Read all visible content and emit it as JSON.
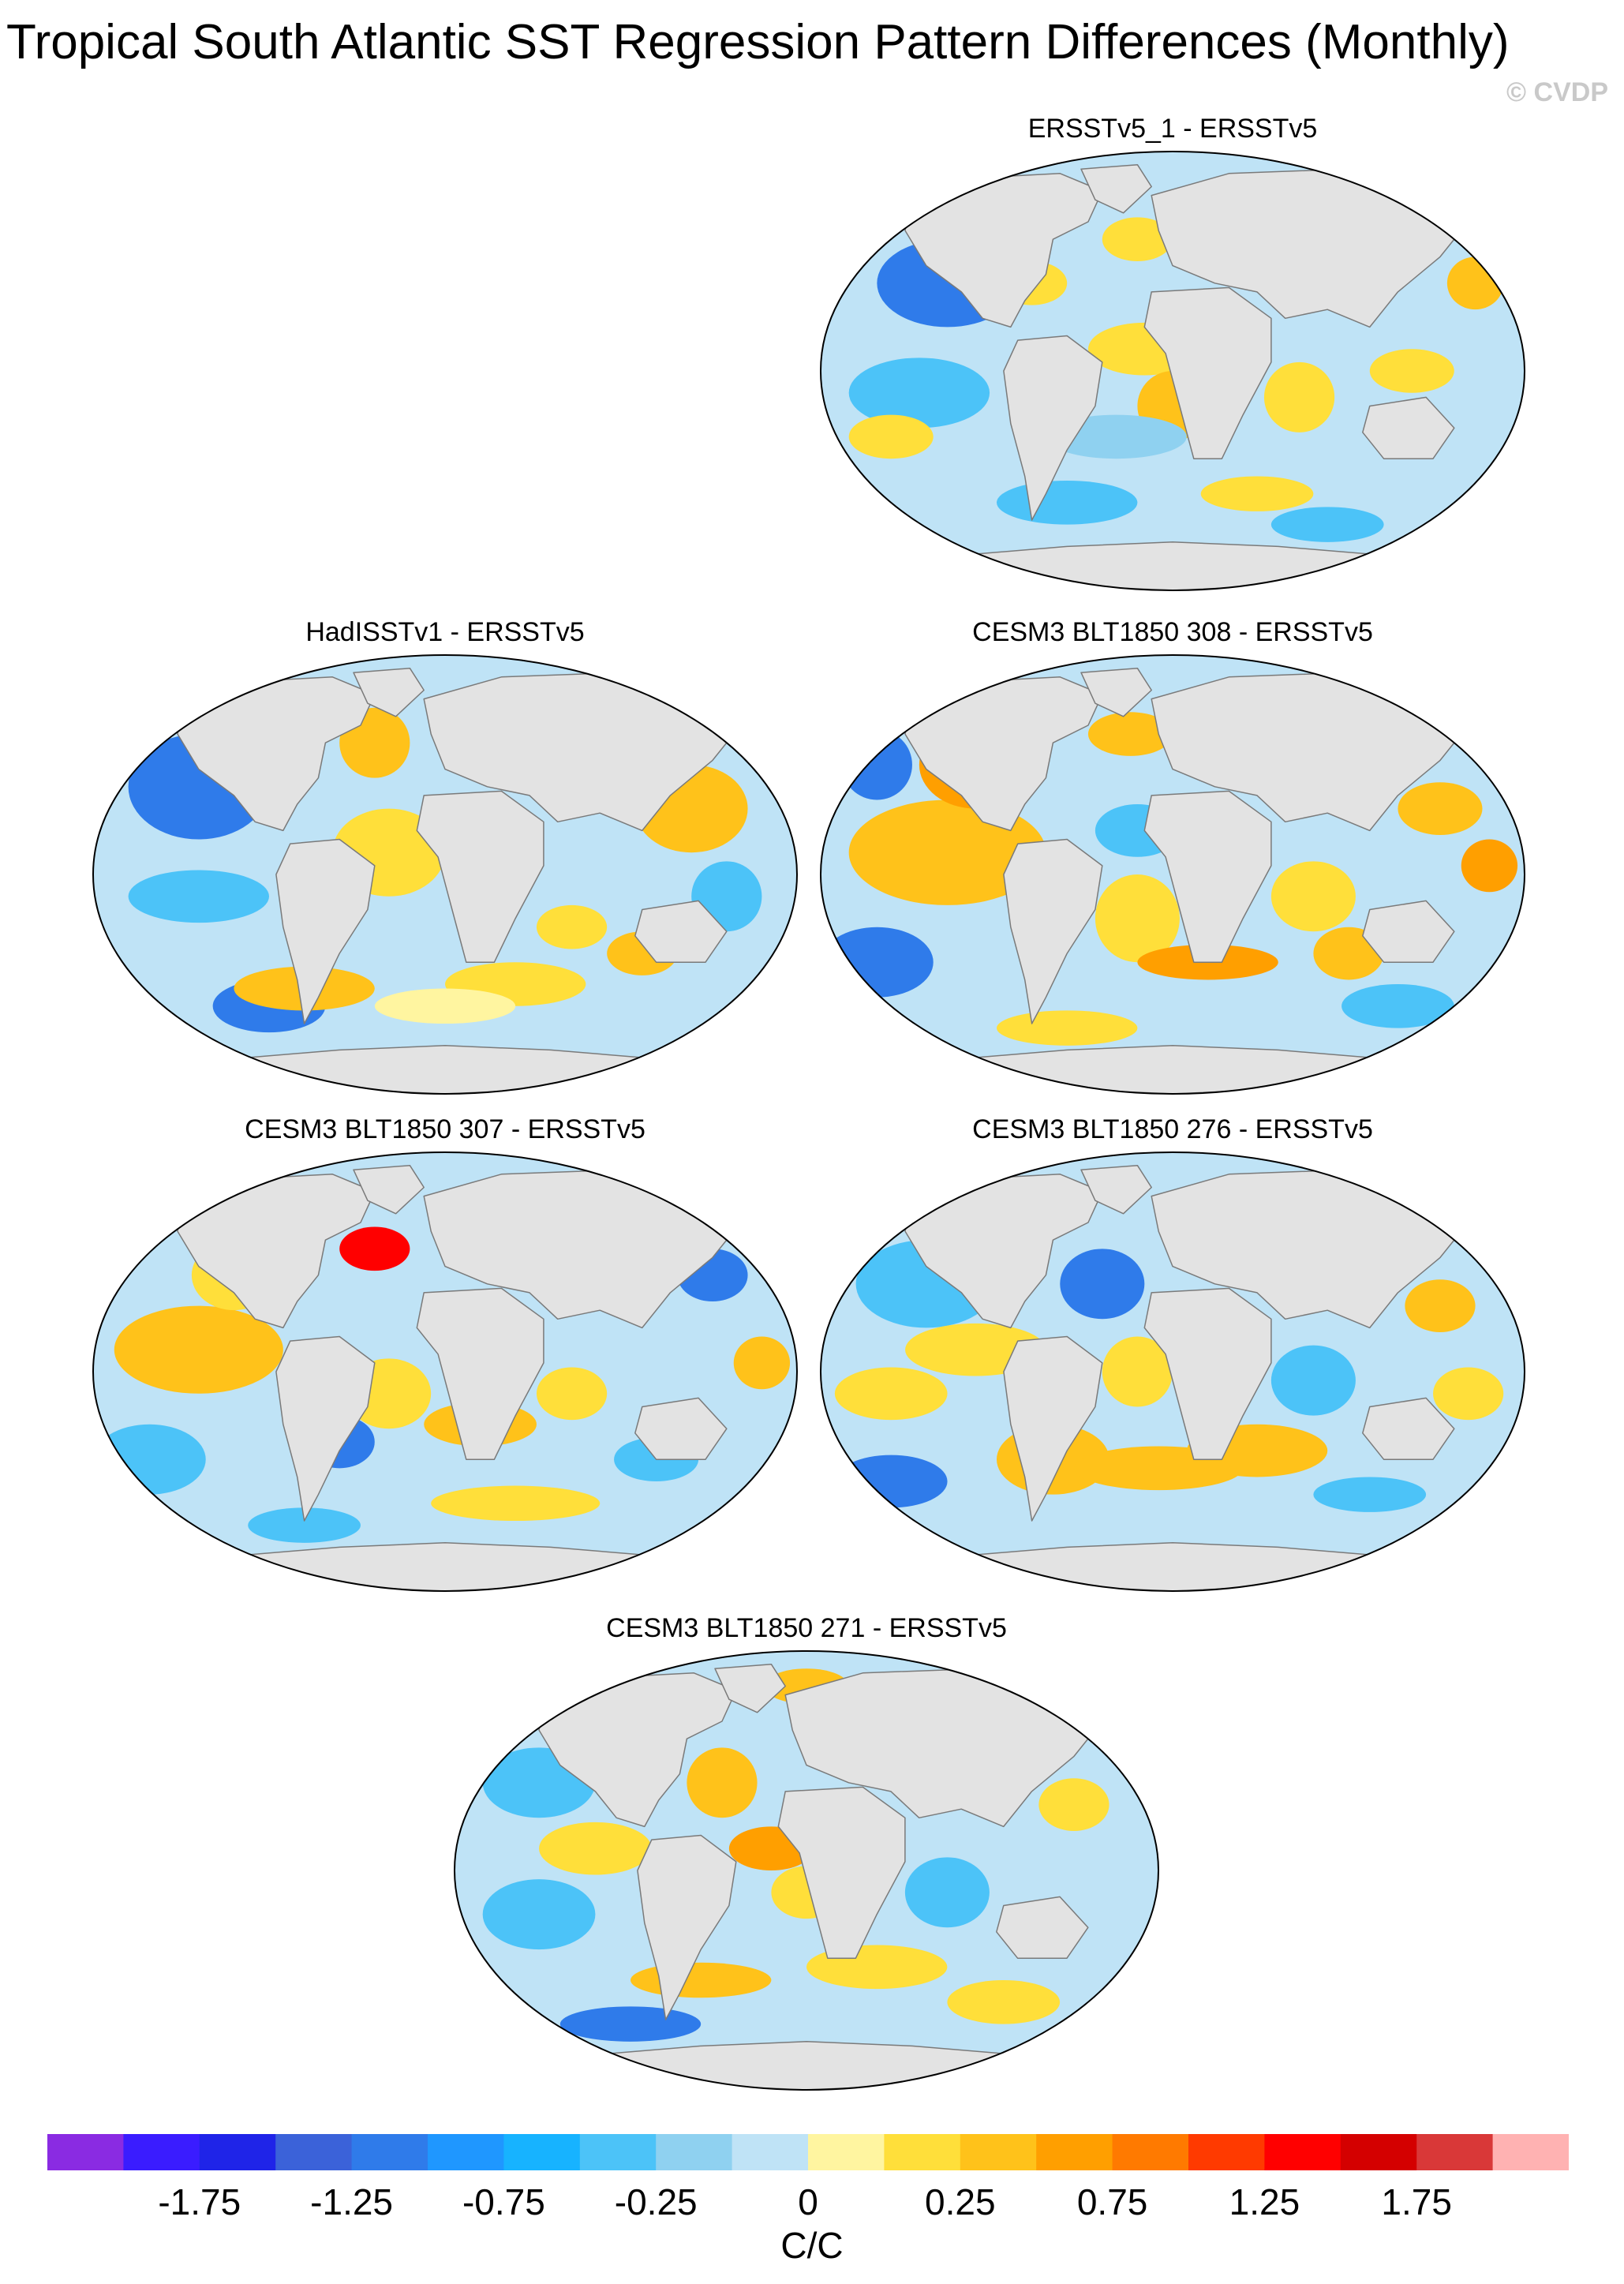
{
  "title": "Tropical South Atlantic SST Regression Pattern Differences (Monthly)",
  "credit": "© CVDP",
  "panels": [
    {
      "title": "ERSSTv5_1 - ERSSTv5",
      "pattern": 0
    },
    {
      "title": "HadISSTv1 - ERSSTv5",
      "pattern": 1
    },
    {
      "title": "CESM3 BLT1850 308 - ERSSTv5",
      "pattern": 2
    },
    {
      "title": "CESM3 BLT1850 307 - ERSSTv5",
      "pattern": 3
    },
    {
      "title": "CESM3 BLT1850 276 - ERSSTv5",
      "pattern": 4
    },
    {
      "title": "CESM3 BLT1850 271 - ERSSTv5",
      "pattern": 5
    }
  ],
  "colorbar": {
    "units": "C/C",
    "colors": [
      "#8a2be2",
      "#3a1cff",
      "#1f24e8",
      "#3b62d9",
      "#2f7bea",
      "#1f97ff",
      "#17b3ff",
      "#4cc3f8",
      "#8fd1f0",
      "#bfe3f6",
      "#fff5a0",
      "#ffdf3a",
      "#ffc21a",
      "#ff9f00",
      "#ff7a00",
      "#ff3a00",
      "#ff0000",
      "#d40000",
      "#d93838",
      "#ffb2b2"
    ],
    "tick_labels": [
      "-1.75",
      "-1.25",
      "-0.75",
      "-0.25",
      "0",
      "0.25",
      "0.75",
      "1.25",
      "1.75"
    ]
  }
}
